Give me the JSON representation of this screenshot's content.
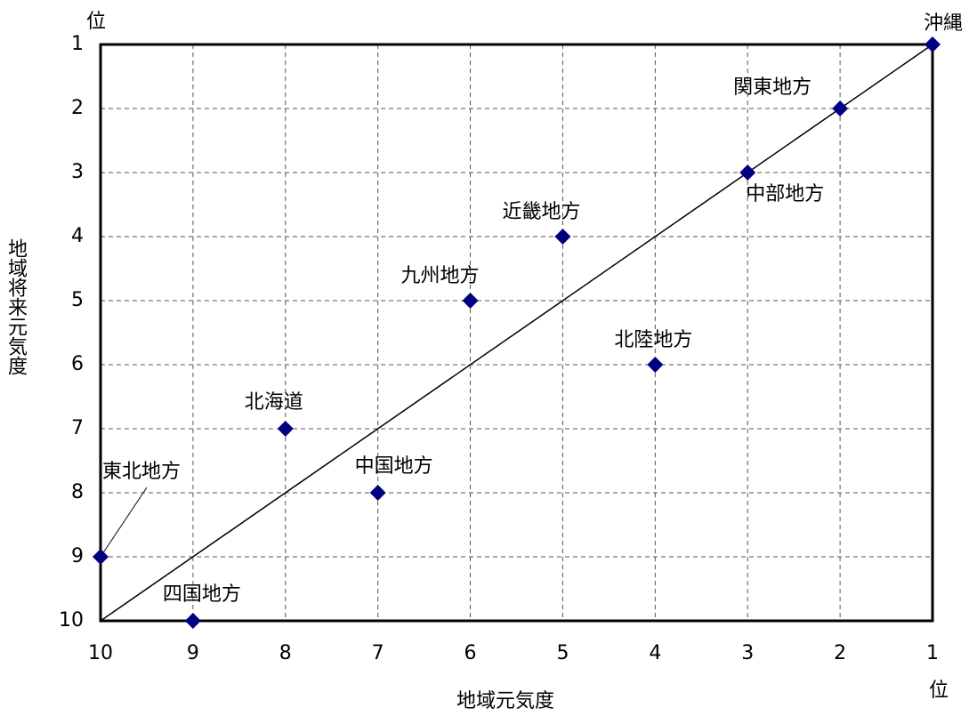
{
  "chart_data": {
    "type": "scatter",
    "xlabel": "地域元気度",
    "ylabel": "地域将来元気度",
    "x_unit_label": "位",
    "y_unit_label": "位",
    "xlim": [
      10,
      1
    ],
    "ylim": [
      10,
      1
    ],
    "x_ticks": [
      "10",
      "9",
      "8",
      "7",
      "6",
      "5",
      "4",
      "3",
      "2",
      "1"
    ],
    "y_ticks": [
      "1",
      "2",
      "3",
      "4",
      "5",
      "6",
      "7",
      "8",
      "9",
      "10"
    ],
    "grid": true,
    "reference_line": "y = x",
    "marker_color": "#000080",
    "points": [
      {
        "label": "沖縄",
        "x": 1,
        "y": 1
      },
      {
        "label": "関東地方",
        "x": 2,
        "y": 2
      },
      {
        "label": "中部地方",
        "x": 3,
        "y": 3
      },
      {
        "label": "近畿地方",
        "x": 5,
        "y": 4
      },
      {
        "label": "九州地方",
        "x": 6,
        "y": 5
      },
      {
        "label": "北陸地方",
        "x": 4,
        "y": 6
      },
      {
        "label": "北海道",
        "x": 8,
        "y": 7
      },
      {
        "label": "中国地方",
        "x": 7,
        "y": 8
      },
      {
        "label": "東北地方",
        "x": 10,
        "y": 9
      },
      {
        "label": "四国地方",
        "x": 9,
        "y": 10
      }
    ]
  }
}
